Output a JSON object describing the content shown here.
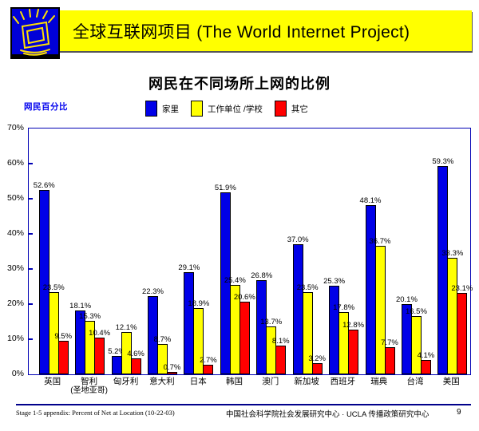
{
  "header": {
    "banner_title": "全球互联网项目 (The World Internet Project)",
    "banner_bg": "#FFFF00",
    "icon_bg": "#0000D8",
    "icon_stroke": "#FFE000"
  },
  "slide": {
    "title": "网民在不同场所上网的比例"
  },
  "chart_data": {
    "type": "bar",
    "title": "网民在不同场所上网的比例",
    "y_axis_title": "网民百分比",
    "ylim": [
      0,
      70
    ],
    "y_tick_labels": [
      "70%",
      "60%",
      "50%",
      "40%",
      "30%",
      "20%",
      "10%",
      "0%"
    ],
    "grid": false,
    "legend_position": "top",
    "axis_color": "#0000B4",
    "categories": [
      {
        "label": "英国"
      },
      {
        "label": "智利",
        "sublabel": "(圣地亚哥)"
      },
      {
        "label": "匈牙利"
      },
      {
        "label": "意大利"
      },
      {
        "label": "日本"
      },
      {
        "label": "韩国"
      },
      {
        "label": "澳门"
      },
      {
        "label": "新加坡"
      },
      {
        "label": "西班牙"
      },
      {
        "label": "瑞典"
      },
      {
        "label": "台湾"
      },
      {
        "label": "美国"
      }
    ],
    "series": [
      {
        "name": "家里",
        "color": "#0000E8",
        "values": [
          52.6,
          18.1,
          5.2,
          22.3,
          29.1,
          51.9,
          26.8,
          37.0,
          25.3,
          48.1,
          20.1,
          59.3
        ]
      },
      {
        "name": "工作单位 /学校",
        "color": "#FFFF00",
        "values": [
          23.5,
          15.3,
          12.1,
          8.7,
          18.9,
          25.4,
          13.7,
          23.5,
          17.8,
          36.7,
          16.5,
          33.3
        ]
      },
      {
        "name": "其它",
        "color": "#FF0000",
        "values": [
          9.5,
          10.4,
          4.6,
          0.7,
          2.7,
          20.6,
          8.1,
          3.2,
          12.8,
          7.7,
          4.1,
          23.1
        ]
      }
    ],
    "value_label_suffix": "%"
  },
  "footer": {
    "left_note": "Stage 1-5 appendix: Percent of Net at Location (10-22-03)",
    "center_credit": "中国社会科学院社会发展研究中心 · UCLA 传播政策研究中心",
    "page_number": "9"
  }
}
